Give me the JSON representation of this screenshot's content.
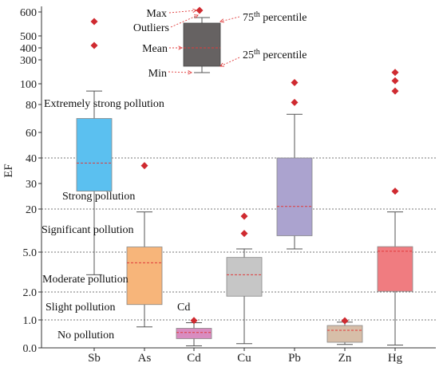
{
  "chart_data": {
    "type": "boxplot",
    "ylabel": "EF",
    "y_ticks": [
      {
        "value": 0.0,
        "label": "0.0"
      },
      {
        "value": 1.0,
        "label": "1.0"
      },
      {
        "value": 2.0,
        "label": "2.0"
      },
      {
        "value": 5.0,
        "label": "5.0"
      },
      {
        "value": 20,
        "label": "20"
      },
      {
        "value": 30,
        "label": "30"
      },
      {
        "value": 40,
        "label": "40"
      },
      {
        "value": 60,
        "label": "60"
      },
      {
        "value": 80,
        "label": "80"
      },
      {
        "value": 100,
        "label": "100"
      },
      {
        "value": 300,
        "label": "300"
      },
      {
        "value": 400,
        "label": "400"
      },
      {
        "value": 500,
        "label": "500"
      },
      {
        "value": 600,
        "label": "600"
      }
    ],
    "threshold_lines": [
      1.0,
      2.0,
      5.0,
      20,
      40
    ],
    "categories": [
      "Sb",
      "As",
      "Cd",
      "Cu",
      "Pb",
      "Zn",
      "Hg"
    ],
    "series": [
      {
        "category": "Sb",
        "color": "#5bc0f0",
        "min": 3.3,
        "q1": 27,
        "median": 38,
        "mean": 38,
        "q3": 70,
        "max": 93,
        "outliers": [
          420,
          560
        ]
      },
      {
        "category": "As",
        "color": "#f7b57a",
        "min": 0.75,
        "q1": 1.55,
        "median": 4.2,
        "mean": 4.2,
        "q3": 6.8,
        "max": 19,
        "outliers": [
          37
        ]
      },
      {
        "category": "Cd",
        "color": "#d98cc0",
        "min": 0.07,
        "q1": 0.33,
        "median": 0.55,
        "mean": 0.55,
        "q3": 0.7,
        "max": 0.9,
        "outliers": [
          0.98
        ]
      },
      {
        "category": "Cu",
        "color": "#c6c6c6",
        "min": 0.15,
        "q1": 1.85,
        "median": 3.3,
        "mean": 3.3,
        "q3": 4.6,
        "max": 6.1,
        "outliers": [
          11.5,
          17.5
        ]
      },
      {
        "category": "Pb",
        "color": "#aba3cf",
        "min": 6.1,
        "q1": 10.7,
        "median": 21,
        "mean": 21,
        "q3": 40,
        "max": 73,
        "outliers": [
          82,
          110
        ]
      },
      {
        "category": "Zn",
        "color": "#d7bea8",
        "min": 0.12,
        "q1": 0.2,
        "median": 0.63,
        "mean": 0.63,
        "q3": 0.8,
        "max": 0.92,
        "outliers": [
          0.97
        ]
      },
      {
        "category": "Hg",
        "color": "#f07c80",
        "min": 0.1,
        "q1": 2.05,
        "median": 5.0,
        "mean": 5.3,
        "q3": 6.9,
        "max": 19,
        "outliers": [
          27,
          93,
          125,
          195
        ]
      }
    ],
    "zone_labels": [
      "Extremely strong pollution",
      "Strong pollution",
      "Significant pollution",
      "Moderate pollution",
      "Slight pollution",
      "No pollution"
    ],
    "annotations": [
      {
        "text": "Cd",
        "category": "Cd"
      }
    ],
    "legend": {
      "placement": "top-center",
      "labels": {
        "max": "Max",
        "outliers": "Outliers",
        "mean": "Mean",
        "min": "Min",
        "p75": "75",
        "p75_suffix": "th",
        "p75_tail": " percentile",
        "p25": "25",
        "p25_suffix": "th",
        "p25_tail": " percentile"
      },
      "box_color": "#666262"
    },
    "colors": {
      "outlier": "#cf2a30",
      "mean_line": "#e03a3a",
      "threshold_line": "#777777",
      "whisker": "#555555"
    }
  }
}
